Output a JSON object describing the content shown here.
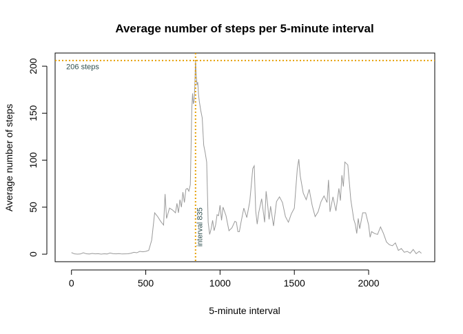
{
  "chart_data": {
    "type": "line",
    "title": "Average number of steps per 5-minute interval",
    "xlabel": "5-minute interval",
    "ylabel": "Average number of steps",
    "xlim": [
      -110,
      2445
    ],
    "ylim": [
      -8,
      214
    ],
    "x_ticks": [
      0,
      500,
      1000,
      1500,
      2000
    ],
    "y_ticks": [
      0,
      50,
      100,
      150,
      200
    ],
    "grid": false,
    "legend": "none",
    "series": [
      {
        "color": "#999999",
        "x": [
          0,
          20,
          40,
          60,
          80,
          100,
          120,
          140,
          160,
          180,
          200,
          220,
          240,
          260,
          280,
          300,
          320,
          340,
          360,
          380,
          400,
          420,
          440,
          460,
          480,
          500,
          520,
          540,
          560,
          580,
          600,
          620,
          630,
          640,
          660,
          680,
          700,
          710,
          720,
          730,
          740,
          750,
          760,
          770,
          780,
          790,
          800,
          810,
          815,
          820,
          825,
          830,
          835,
          840,
          845,
          850,
          855,
          860,
          870,
          880,
          890,
          900,
          910,
          920,
          930,
          940,
          950,
          960,
          970,
          980,
          990,
          1000,
          1010,
          1020,
          1040,
          1060,
          1080,
          1100,
          1110,
          1120,
          1130,
          1140,
          1160,
          1180,
          1200,
          1210,
          1220,
          1230,
          1240,
          1250,
          1260,
          1280,
          1300,
          1310,
          1320,
          1330,
          1340,
          1360,
          1380,
          1400,
          1420,
          1440,
          1460,
          1480,
          1500,
          1520,
          1530,
          1540,
          1560,
          1580,
          1600,
          1620,
          1640,
          1660,
          1680,
          1700,
          1720,
          1730,
          1740,
          1760,
          1780,
          1800,
          1810,
          1820,
          1830,
          1840,
          1860,
          1880,
          1900,
          1910,
          1920,
          1930,
          1940,
          1960,
          1980,
          2000,
          2010,
          2020,
          2040,
          2060,
          2080,
          2100,
          2120,
          2140,
          2160,
          2180,
          2200,
          2220,
          2240,
          2260,
          2280,
          2300,
          2320,
          2340,
          2355
        ],
        "y": [
          1.7,
          0.3,
          0.1,
          0.2,
          1.5,
          0.4,
          0.2,
          0.8,
          0.3,
          0.5,
          0.1,
          0.4,
          0.2,
          1.2,
          0.5,
          0.3,
          0.6,
          0.2,
          0.3,
          0.4,
          1.0,
          2.0,
          1.5,
          3.0,
          2.5,
          3.0,
          4.0,
          15,
          44,
          40,
          35,
          31,
          64,
          38,
          49,
          47,
          44,
          54,
          44,
          58,
          50,
          66,
          55,
          69,
          70,
          67,
          74,
          155,
          171,
          160,
          163,
          178,
          206,
          189,
          180,
          183,
          170,
          163,
          153,
          145,
          116,
          108,
          98,
          34,
          21,
          27,
          36,
          25,
          31,
          42,
          41,
          52,
          36,
          50,
          41,
          25,
          28,
          35,
          34,
          24,
          24,
          33,
          49,
          39,
          56,
          73,
          91,
          94,
          46,
          32,
          44,
          59,
          34,
          67,
          53,
          37,
          51,
          30,
          56,
          61,
          55,
          40,
          34,
          43,
          49,
          91,
          101,
          83,
          65,
          58,
          69,
          52,
          40,
          45,
          56,
          62,
          55,
          79,
          45,
          61,
          46,
          70,
          57,
          84,
          72,
          98,
          95,
          58,
          37,
          32,
          22,
          38,
          27,
          44,
          44,
          31,
          18,
          24,
          22,
          21,
          29,
          22,
          13,
          10,
          9,
          12,
          4,
          6,
          2,
          3,
          1,
          5,
          0.5,
          3,
          1
        ]
      }
    ],
    "annotations": [
      {
        "type": "hline",
        "value": 206,
        "color": "#E69F00",
        "style": "dotted"
      },
      {
        "type": "vline",
        "value": 835,
        "color": "#E69F00",
        "style": "dotted"
      },
      {
        "type": "text",
        "text": "206 steps",
        "x": -35,
        "y": 199
      },
      {
        "type": "text",
        "text": "interval 835",
        "x": 880,
        "y": 8,
        "rotation": "vertical"
      }
    ]
  }
}
